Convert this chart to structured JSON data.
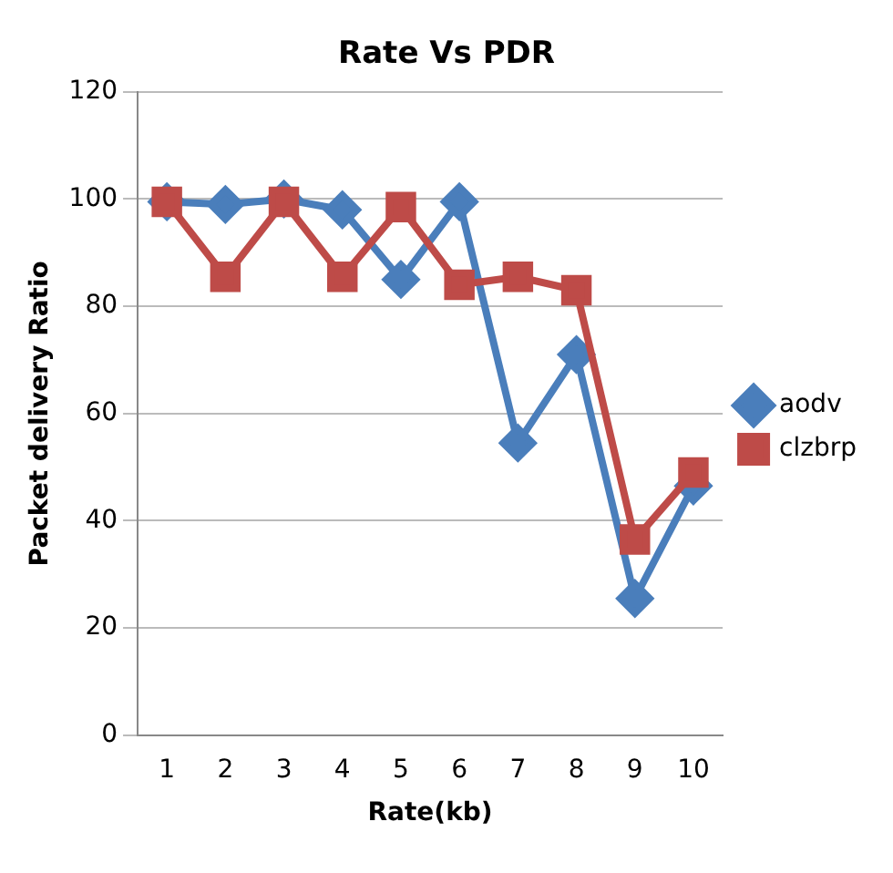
{
  "chart_data": {
    "type": "line",
    "title": "Rate Vs PDR",
    "xlabel": "Rate(kb)",
    "ylabel": "Packet delivery Ratio",
    "categories": [
      "1",
      "2",
      "3",
      "4",
      "5",
      "6",
      "7",
      "8",
      "9",
      "10"
    ],
    "series": [
      {
        "name": "aodv",
        "color": "#4a7ebb",
        "marker": "diamond",
        "values": [
          99.5,
          99,
          100,
          98,
          85,
          99.5,
          54.5,
          71,
          25.5,
          46.5
        ]
      },
      {
        "name": "clzbrp",
        "color": "#be4b48",
        "marker": "square",
        "values": [
          99.5,
          85.5,
          99.5,
          85.5,
          98.5,
          84,
          85.5,
          83,
          36.5,
          49
        ]
      }
    ],
    "ylim": [
      0,
      120
    ],
    "yticks": [
      0,
      20,
      40,
      60,
      80,
      100,
      120
    ],
    "grid": "y",
    "legend": "right",
    "line_style": "solid"
  }
}
